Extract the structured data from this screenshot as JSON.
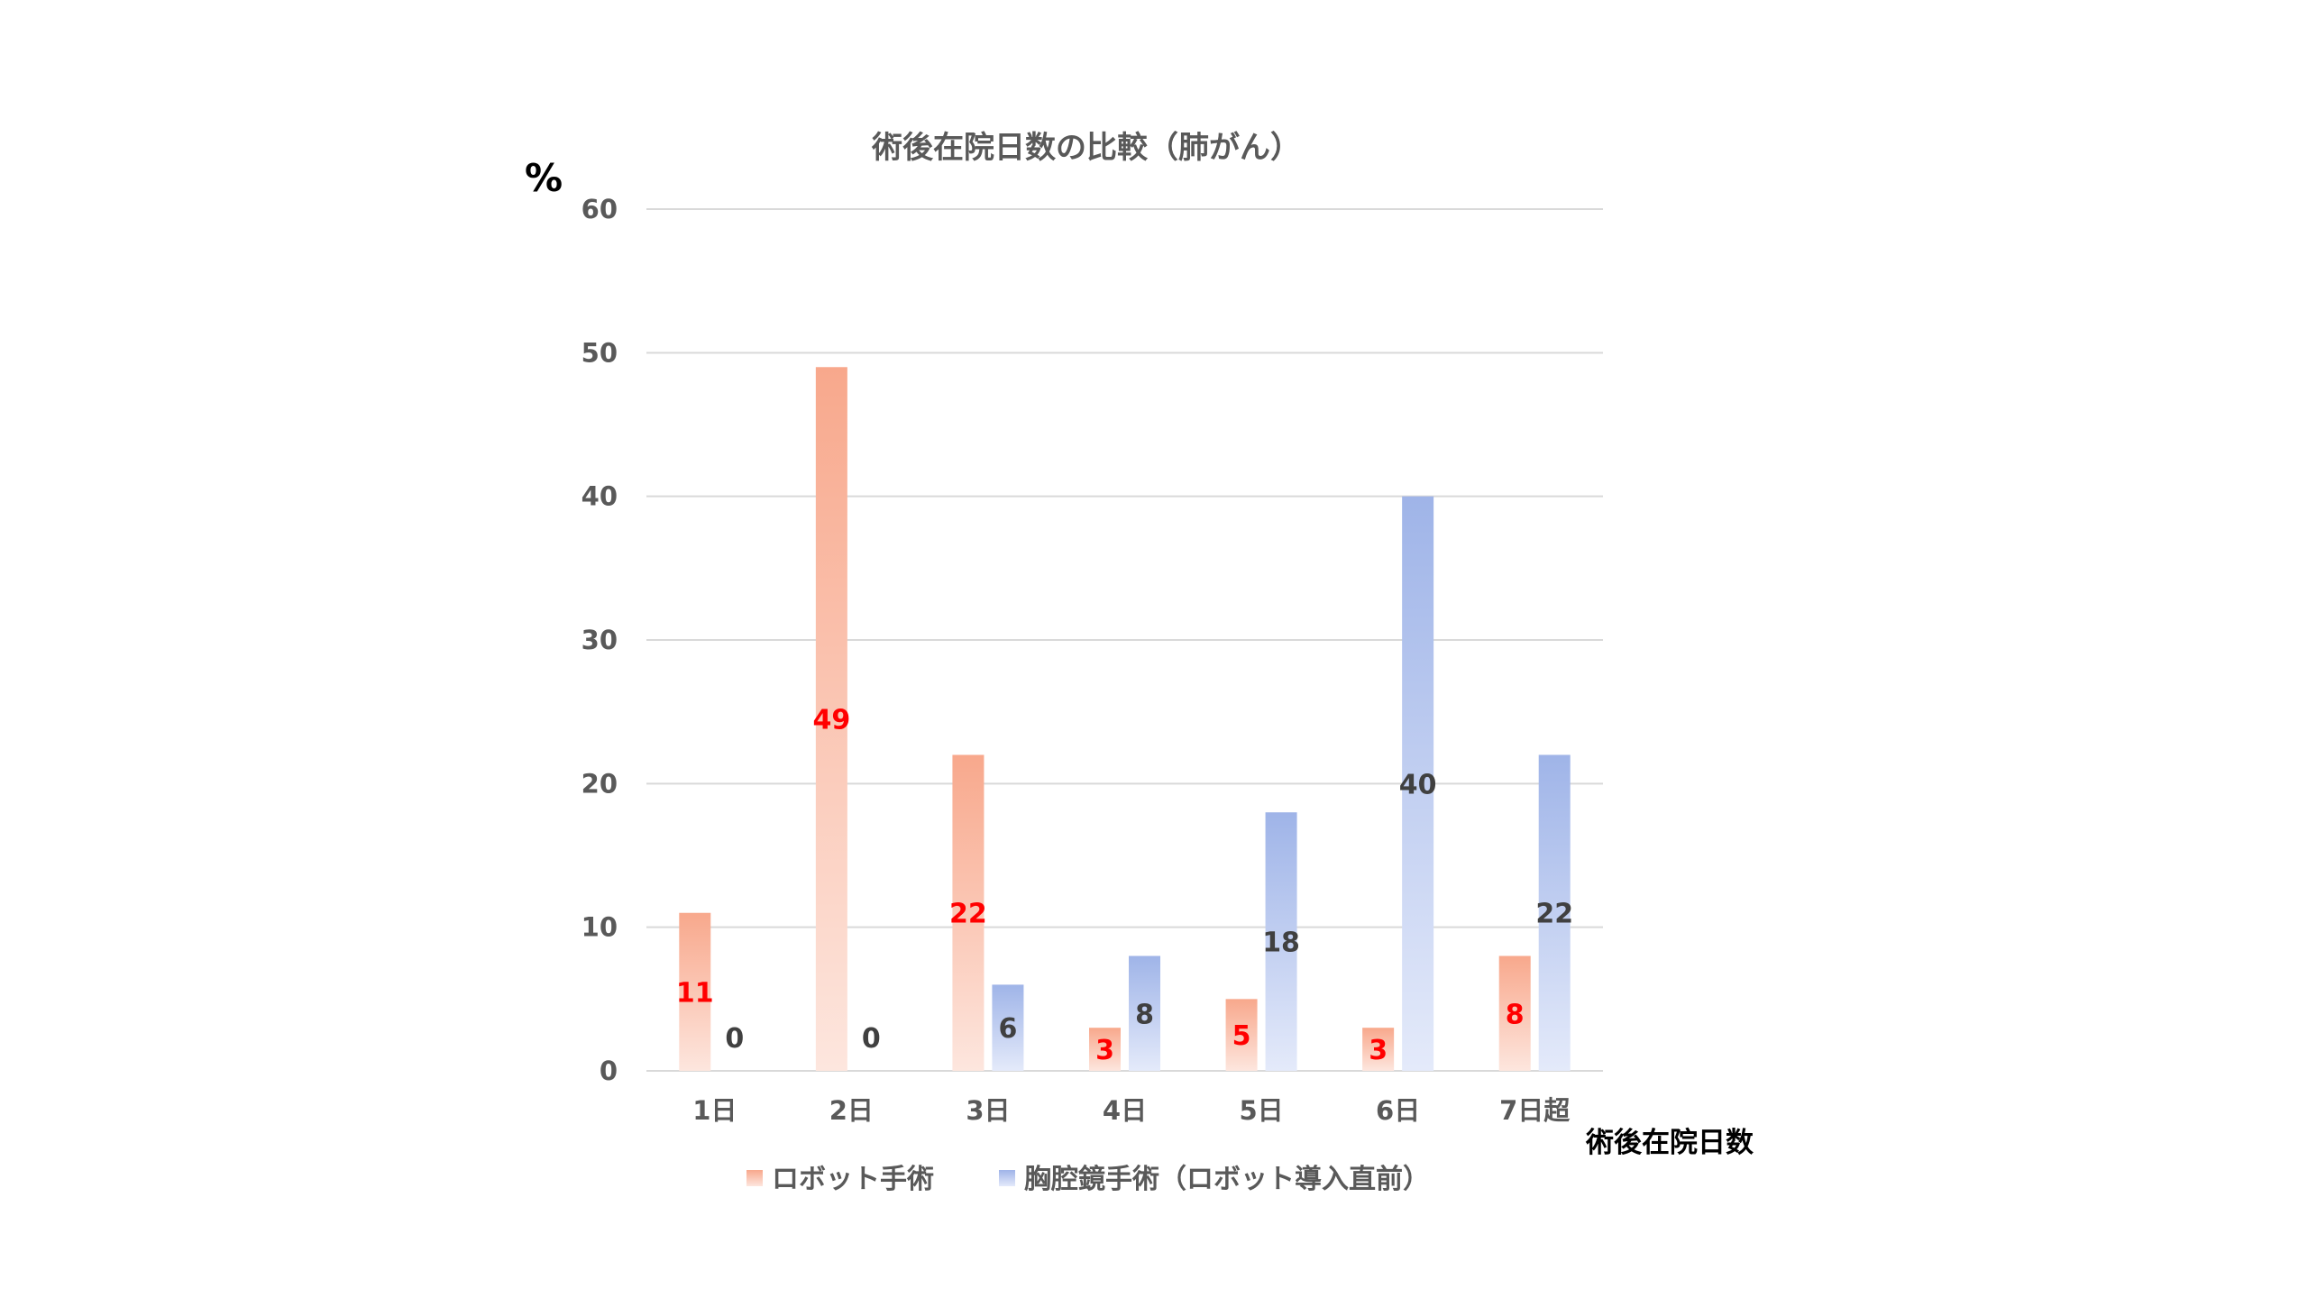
{
  "chart_data": {
    "type": "bar",
    "title": "術後在院日数の比較（肺がん）",
    "ylabel": "%",
    "xlabel": "術後在院日数",
    "ylim": [
      0,
      60
    ],
    "yticks": [
      0,
      10,
      20,
      30,
      40,
      50,
      60
    ],
    "grid": true,
    "legend_position": "bottom",
    "categories": [
      "1日",
      "2日",
      "3日",
      "4日",
      "5日",
      "6日",
      "7日超"
    ],
    "series": [
      {
        "name": "ロボット手術",
        "values": [
          11,
          49,
          22,
          3,
          5,
          3,
          8
        ],
        "color": "#f8a88c",
        "color_light": "#fde6de",
        "label_color": "#ff0000"
      },
      {
        "name": "胸腔鏡手術（ロボット導入直前）",
        "values": [
          0,
          0,
          6,
          8,
          18,
          40,
          22
        ],
        "color": "#9fb4e8",
        "color_light": "#e4eafa",
        "label_color": "#404040"
      }
    ]
  }
}
